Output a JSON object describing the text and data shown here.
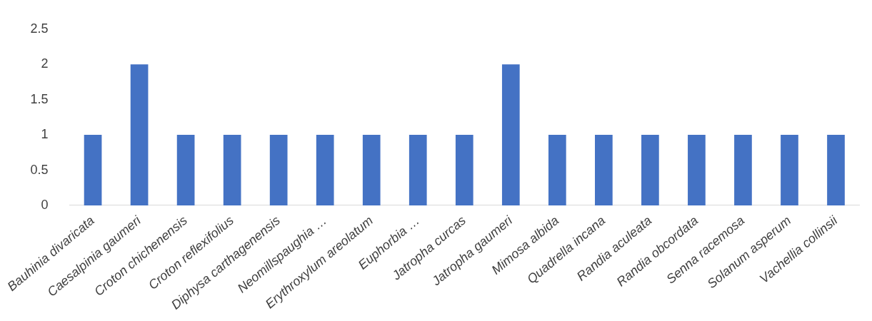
{
  "chart_data": {
    "type": "bar",
    "categories": [
      "Bauhinia divaricata",
      "Caesalpinia gaumeri",
      "Croton chichenensis",
      "Croton reflexifolius",
      "Diphysa carthagenensis",
      "Neomillspaughia …",
      "Erythroxylum areolatum",
      "Euphorbia …",
      "Jatropha curcas",
      "Jatropha gaumeri",
      "Mimosa albida",
      "Quadrella incana",
      "Randia aculeata",
      "Randia obcordata",
      "Senna racemosa",
      "Solanum asperum",
      "Vachellia collinsii"
    ],
    "values": [
      1,
      2,
      1,
      1,
      1,
      1,
      1,
      1,
      1,
      2,
      1,
      1,
      1,
      1,
      1,
      1,
      1
    ],
    "color": "#4472c4",
    "ylim": [
      0,
      2.5
    ],
    "yticks": [
      0,
      0.5,
      1,
      1.5,
      2,
      2.5
    ],
    "grid": false,
    "legend": false
  }
}
